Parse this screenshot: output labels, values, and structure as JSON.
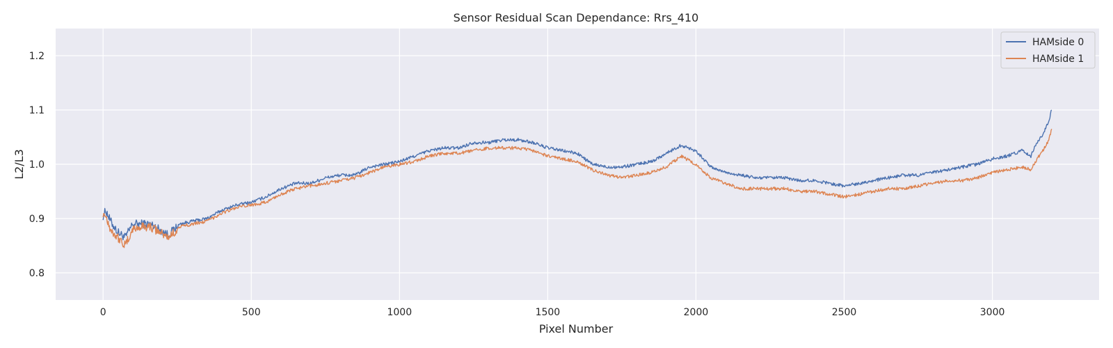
{
  "chart_data": {
    "type": "line",
    "title": "Sensor Residual Scan Dependance: Rrs_410",
    "xlabel": "Pixel Number",
    "ylabel": "L2/L3",
    "xlim": [
      -160,
      3360
    ],
    "ylim": [
      0.75,
      1.25
    ],
    "xticks": [
      0,
      500,
      1000,
      1500,
      2000,
      2500,
      3000
    ],
    "yticks": [
      0.8,
      0.9,
      1.0,
      1.1,
      1.2
    ],
    "xtick_labels": [
      "0",
      "500",
      "1000",
      "1500",
      "2000",
      "2500",
      "3000"
    ],
    "ytick_labels": [
      "0.8",
      "0.9",
      "1.0",
      "1.1",
      "1.2"
    ],
    "grid": true,
    "legend_position": "top-right",
    "series": [
      {
        "name": "HAMside 0",
        "color": "#4c72b0",
        "x": [
          0,
          10,
          25,
          50,
          75,
          100,
          130,
          160,
          190,
          220,
          260,
          300,
          350,
          400,
          450,
          500,
          550,
          600,
          650,
          700,
          750,
          800,
          850,
          900,
          950,
          1000,
          1050,
          1100,
          1150,
          1200,
          1250,
          1300,
          1350,
          1400,
          1450,
          1500,
          1550,
          1600,
          1650,
          1700,
          1750,
          1800,
          1850,
          1900,
          1950,
          2000,
          2050,
          2100,
          2150,
          2200,
          2250,
          2300,
          2350,
          2400,
          2450,
          2500,
          2550,
          2600,
          2650,
          2700,
          2750,
          2800,
          2850,
          2900,
          2950,
          3000,
          3050,
          3100,
          3130,
          3150,
          3170,
          3190,
          3200
        ],
        "y": [
          0.905,
          0.915,
          0.895,
          0.875,
          0.865,
          0.89,
          0.89,
          0.89,
          0.88,
          0.87,
          0.89,
          0.895,
          0.9,
          0.915,
          0.925,
          0.93,
          0.94,
          0.955,
          0.965,
          0.965,
          0.975,
          0.98,
          0.98,
          0.995,
          1.0,
          1.005,
          1.015,
          1.025,
          1.03,
          1.03,
          1.04,
          1.04,
          1.045,
          1.045,
          1.04,
          1.03,
          1.025,
          1.02,
          1.0,
          0.995,
          0.995,
          1.0,
          1.005,
          1.02,
          1.035,
          1.025,
          0.995,
          0.985,
          0.98,
          0.975,
          0.975,
          0.975,
          0.97,
          0.97,
          0.965,
          0.96,
          0.965,
          0.97,
          0.975,
          0.98,
          0.98,
          0.985,
          0.99,
          0.995,
          1.0,
          1.01,
          1.015,
          1.025,
          1.015,
          1.04,
          1.055,
          1.08,
          1.1
        ]
      },
      {
        "name": "HAMside 1",
        "color": "#dd8452",
        "x": [
          0,
          10,
          25,
          50,
          75,
          100,
          130,
          160,
          190,
          220,
          260,
          300,
          350,
          400,
          450,
          500,
          550,
          600,
          650,
          700,
          750,
          800,
          850,
          900,
          950,
          1000,
          1050,
          1100,
          1150,
          1200,
          1250,
          1300,
          1350,
          1400,
          1450,
          1500,
          1550,
          1600,
          1650,
          1700,
          1750,
          1800,
          1850,
          1900,
          1950,
          2000,
          2050,
          2100,
          2150,
          2200,
          2250,
          2300,
          2350,
          2400,
          2450,
          2500,
          2550,
          2600,
          2650,
          2700,
          2750,
          2800,
          2850,
          2900,
          2950,
          3000,
          3050,
          3100,
          3130,
          3150,
          3170,
          3190,
          3200
        ],
        "y": [
          0.91,
          0.905,
          0.88,
          0.865,
          0.85,
          0.88,
          0.885,
          0.885,
          0.875,
          0.865,
          0.885,
          0.89,
          0.895,
          0.91,
          0.92,
          0.925,
          0.93,
          0.945,
          0.955,
          0.96,
          0.965,
          0.97,
          0.975,
          0.985,
          0.995,
          1.0,
          1.005,
          1.015,
          1.02,
          1.02,
          1.025,
          1.03,
          1.03,
          1.03,
          1.025,
          1.015,
          1.01,
          1.005,
          0.99,
          0.98,
          0.975,
          0.98,
          0.985,
          0.995,
          1.015,
          1.0,
          0.975,
          0.965,
          0.955,
          0.955,
          0.955,
          0.955,
          0.95,
          0.95,
          0.945,
          0.94,
          0.945,
          0.95,
          0.955,
          0.955,
          0.96,
          0.965,
          0.97,
          0.97,
          0.975,
          0.985,
          0.99,
          0.995,
          0.99,
          1.01,
          1.025,
          1.045,
          1.065
        ]
      }
    ]
  }
}
